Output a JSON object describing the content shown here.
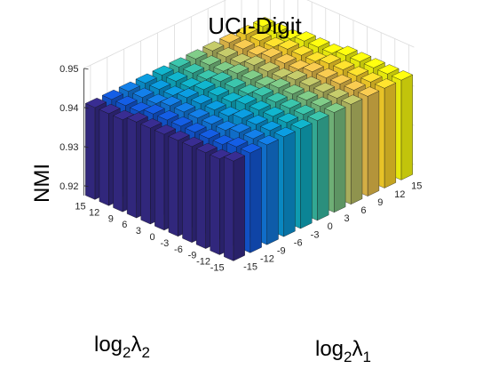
{
  "chart_data": {
    "type": "bar3d",
    "title": "UCI-Digit",
    "zlabel": "NMI",
    "xlabel": {
      "base": "log",
      "base_sub": "2",
      "sym": "λ",
      "sym_sub": "1"
    },
    "ylabel": {
      "base": "log",
      "base_sub": "2",
      "sym": "λ",
      "sym_sub": "2"
    },
    "x_ticks": [
      "-15",
      "-12",
      "-9",
      "-6",
      "-3",
      "0",
      "3",
      "6",
      "9",
      "12",
      "15"
    ],
    "y_ticks": [
      "-15",
      "-12",
      "-9",
      "-6",
      "-3",
      "0",
      "3",
      "6",
      "9",
      "12",
      "15"
    ],
    "z_ticks": [
      "0.92",
      "0.93",
      "0.94",
      "0.95"
    ],
    "zlim": [
      0.9175,
      0.95
    ],
    "grid": true,
    "colormap": "parula",
    "values": [
      [
        0.943,
        0.943,
        0.943,
        0.943,
        0.943,
        0.943,
        0.943,
        0.943,
        0.943,
        0.943,
        0.943
      ],
      [
        0.942,
        0.943,
        0.943,
        0.943,
        0.943,
        0.943,
        0.943,
        0.943,
        0.943,
        0.943,
        0.943
      ],
      [
        0.942,
        0.942,
        0.943,
        0.943,
        0.943,
        0.943,
        0.943,
        0.943,
        0.943,
        0.943,
        0.943
      ],
      [
        0.942,
        0.942,
        0.942,
        0.943,
        0.943,
        0.943,
        0.943,
        0.943,
        0.943,
        0.943,
        0.943
      ],
      [
        0.942,
        0.942,
        0.942,
        0.942,
        0.943,
        0.943,
        0.943,
        0.943,
        0.943,
        0.943,
        0.943
      ],
      [
        0.942,
        0.942,
        0.942,
        0.942,
        0.942,
        0.942,
        0.942,
        0.942,
        0.942,
        0.942,
        0.942
      ],
      [
        0.942,
        0.942,
        0.942,
        0.942,
        0.942,
        0.942,
        0.942,
        0.942,
        0.942,
        0.942,
        0.942
      ],
      [
        0.942,
        0.942,
        0.942,
        0.942,
        0.942,
        0.942,
        0.942,
        0.942,
        0.942,
        0.942,
        0.942
      ],
      [
        0.941,
        0.941,
        0.941,
        0.941,
        0.941,
        0.941,
        0.941,
        0.941,
        0.941,
        0.941,
        0.941
      ],
      [
        0.941,
        0.941,
        0.941,
        0.941,
        0.941,
        0.941,
        0.941,
        0.941,
        0.941,
        0.941,
        0.941
      ],
      [
        0.941,
        0.941,
        0.941,
        0.941,
        0.941,
        0.941,
        0.941,
        0.941,
        0.941,
        0.941,
        0.941
      ]
    ]
  }
}
